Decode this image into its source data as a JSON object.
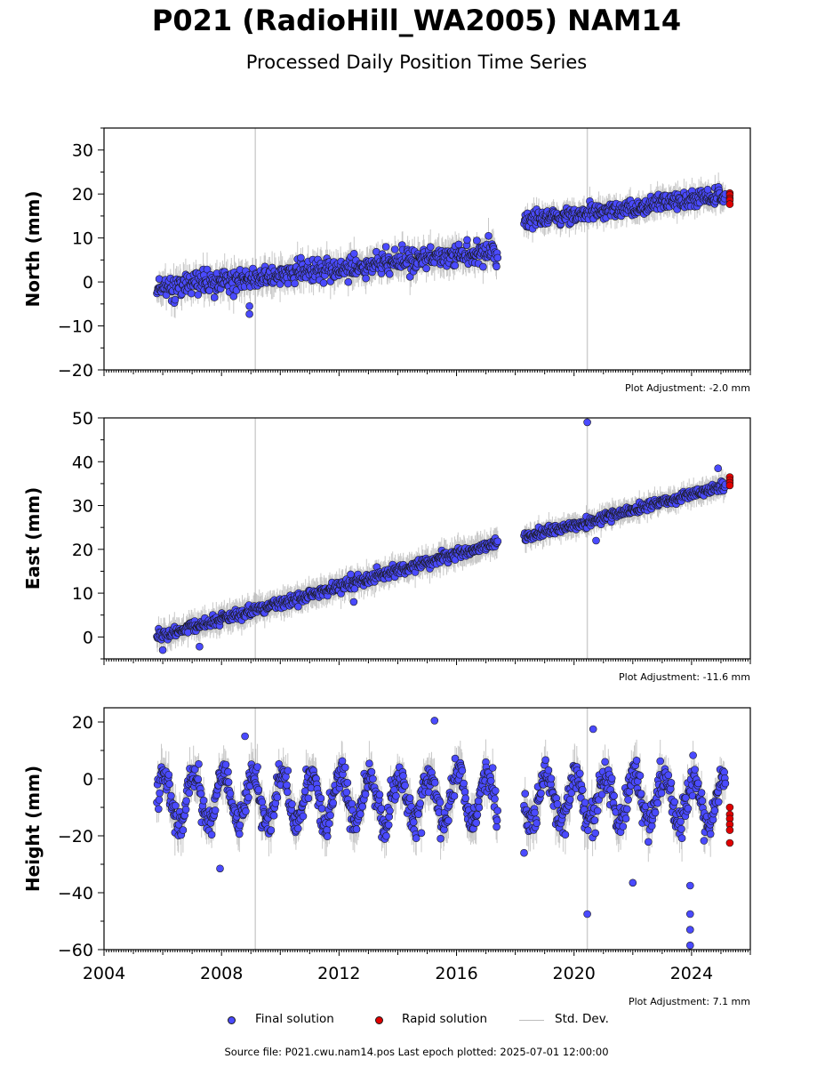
{
  "title": "P021 (RadioHill_WA2005) NAM14",
  "subtitle": "Processed Daily Position Time Series",
  "legend": {
    "final": "Final solution",
    "rapid": "Rapid solution",
    "stddev": "Std. Dev."
  },
  "source": "Source file: P021.cwu.nam14.pos  Last epoch plotted: 2025-07-01 12:00:00",
  "colors": {
    "final": "#4a4aff",
    "rapid": "#e00000",
    "stddev": "#bdbdbd",
    "marker_edge": "#1a1a1a",
    "vline": "#cfcfcf"
  },
  "chart_data": [
    {
      "type": "scatter",
      "ylabel": "North (mm)",
      "xlim": [
        2004.0,
        2026.0
      ],
      "ylim": [
        -20,
        35
      ],
      "yticks": [
        -20,
        -10,
        0,
        10,
        20,
        30
      ],
      "ytick_labels": [
        "−20",
        "−10",
        "0",
        "10",
        "20",
        "30"
      ],
      "show_xticklabels": false,
      "adjustment": "Plot Adjustment: -2.0 mm",
      "vlines": [
        2009.15,
        2020.45
      ],
      "segments": [
        {
          "from": 2005.8,
          "to": 2017.4,
          "start": -1.5,
          "end": 7.0,
          "noise": 2.2,
          "err": 3.0
        },
        {
          "from": 2018.3,
          "to": 2025.15,
          "start": 14.0,
          "end": 19.5,
          "noise": 1.7,
          "err": 2.4
        }
      ],
      "final_points": [
        [
          2008.95,
          -5.5
        ],
        [
          2008.95,
          -7.3
        ],
        [
          2010.7,
          5.5
        ],
        [
          2013.6,
          8.0
        ],
        [
          2024.55,
          21.0
        ]
      ],
      "rapid_points": [
        [
          2025.3,
          20.2
        ],
        [
          2025.3,
          19.8
        ],
        [
          2025.3,
          19.0
        ],
        [
          2025.3,
          18.6
        ],
        [
          2025.3,
          17.7
        ]
      ]
    },
    {
      "type": "scatter",
      "ylabel": "East (mm)",
      "xlim": [
        2004.0,
        2026.0
      ],
      "ylim": [
        -5,
        50
      ],
      "yticks": [
        0,
        10,
        20,
        30,
        40,
        50
      ],
      "ytick_labels": [
        "0",
        "10",
        "20",
        "30",
        "40",
        "50"
      ],
      "show_xticklabels": false,
      "adjustment": "Plot Adjustment: -11.6 mm",
      "vlines": [
        2009.15,
        2020.45
      ],
      "segments": [
        {
          "from": 2005.8,
          "to": 2017.4,
          "start": 0.0,
          "end": 21.5,
          "noise": 1.0,
          "err": 2.6
        },
        {
          "from": 2018.3,
          "to": 2025.15,
          "start": 22.5,
          "end": 34.5,
          "noise": 0.9,
          "err": 2.2
        }
      ],
      "final_points": [
        [
          2020.45,
          49.0
        ],
        [
          2020.75,
          22.0
        ],
        [
          2024.9,
          38.5
        ],
        [
          2006.0,
          -3.0
        ],
        [
          2007.25,
          -2.2
        ],
        [
          2012.5,
          8.0
        ]
      ],
      "rapid_points": [
        [
          2025.3,
          36.5
        ],
        [
          2025.3,
          35.8
        ],
        [
          2025.3,
          35.2
        ],
        [
          2025.3,
          34.6
        ]
      ]
    },
    {
      "type": "scatter",
      "ylabel": "Height (mm)",
      "xlim": [
        2004.0,
        2026.0
      ],
      "ylim": [
        -60,
        25
      ],
      "yticks": [
        -60,
        -40,
        -20,
        0,
        20
      ],
      "ytick_labels": [
        "−60",
        "−40",
        "−20",
        "0",
        "20"
      ],
      "show_xticklabels": true,
      "xticks": [
        2004,
        2008,
        2012,
        2016,
        2020,
        2024
      ],
      "xtick_labels": [
        "2004",
        "2008",
        "2012",
        "2016",
        "2020",
        "2024"
      ],
      "adjustment": "Plot Adjustment: 7.1 mm",
      "vlines": [
        2009.15,
        2020.45
      ],
      "seasonal_amp": 9.0,
      "segments": [
        {
          "from": 2005.8,
          "to": 2017.4,
          "start": -7.0,
          "end": -7.0,
          "noise": 5.0,
          "err": 6.0
        },
        {
          "from": 2018.3,
          "to": 2025.15,
          "start": -7.0,
          "end": -7.0,
          "noise": 5.0,
          "err": 6.0
        }
      ],
      "final_points": [
        [
          2020.45,
          -47.5
        ],
        [
          2023.95,
          -37.5
        ],
        [
          2023.95,
          -47.5
        ],
        [
          2023.95,
          -53.0
        ],
        [
          2023.95,
          -58.5
        ],
        [
          2007.95,
          -31.5
        ],
        [
          2008.8,
          15.0
        ],
        [
          2015.25,
          20.5
        ],
        [
          2018.3,
          -26.0
        ],
        [
          2022.0,
          -36.5
        ],
        [
          2020.65,
          17.5
        ]
      ],
      "rapid_points": [
        [
          2025.3,
          -10.0
        ],
        [
          2025.3,
          -12.5
        ],
        [
          2025.3,
          -14.0
        ],
        [
          2025.3,
          -16.0
        ],
        [
          2025.3,
          -18.0
        ],
        [
          2025.3,
          -22.5
        ]
      ]
    }
  ]
}
